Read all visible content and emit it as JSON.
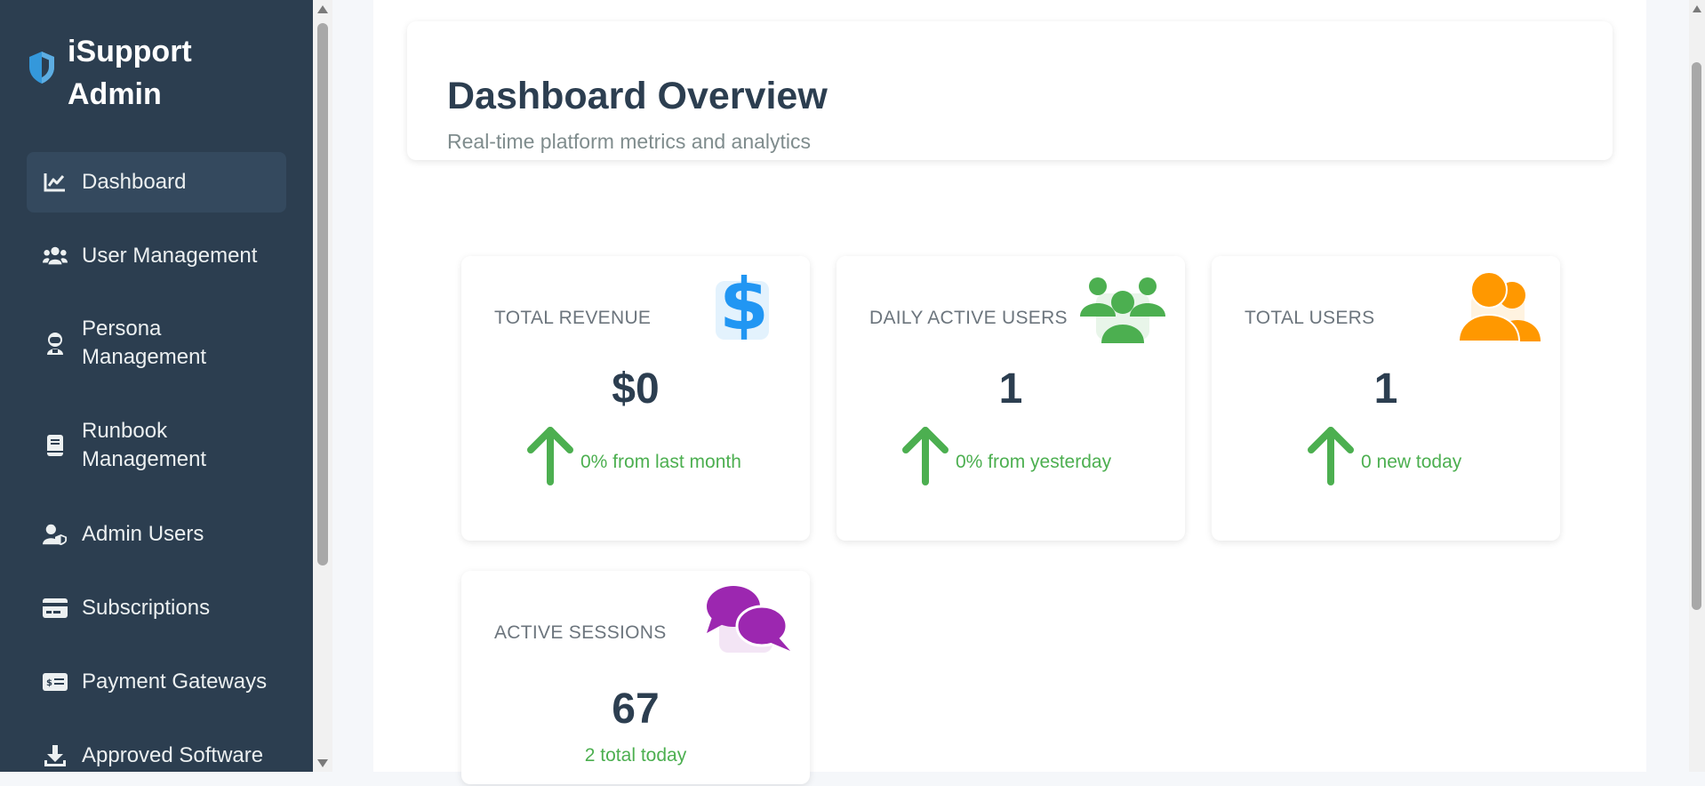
{
  "brand": {
    "line1": "iSupport",
    "line2": "Admin"
  },
  "sidebar": {
    "items": [
      {
        "line1": "Dashboard",
        "line2": "",
        "icon": "chart-line-icon",
        "active": true
      },
      {
        "line1": "User Management",
        "line2": "",
        "icon": "users-icon",
        "active": false
      },
      {
        "line1": "Persona",
        "line2": "Management",
        "icon": "user-astronaut-icon",
        "active": false
      },
      {
        "line1": "Runbook",
        "line2": "Management",
        "icon": "book-icon",
        "active": false
      },
      {
        "line1": "Admin Users",
        "line2": "",
        "icon": "user-shield-icon",
        "active": false
      },
      {
        "line1": "Subscriptions",
        "line2": "",
        "icon": "credit-card-icon",
        "active": false
      },
      {
        "line1": "Payment Gateways",
        "line2": "",
        "icon": "money-check-icon",
        "active": false
      },
      {
        "line1": "Approved Software",
        "line2": "",
        "icon": "download-icon",
        "active": false
      }
    ]
  },
  "header": {
    "title": "Dashboard Overview",
    "subtitle": "Real-time platform metrics and analytics"
  },
  "stats": [
    {
      "label": "TOTAL REVENUE",
      "value": "$0",
      "change": "0% from last month",
      "icon": "dollar-icon",
      "color": "#2196f3"
    },
    {
      "label": "DAILY ACTIVE USERS",
      "value": "1",
      "change": "0% from yesterday",
      "icon": "users-group-icon",
      "color": "#4caf50"
    },
    {
      "label": "TOTAL USERS",
      "value": "1",
      "change": "0 new today",
      "icon": "user-friends-icon",
      "color": "#ff9800"
    },
    {
      "label": "ACTIVE SESSIONS",
      "value": "67",
      "change": "2 total today",
      "icon": "comments-icon",
      "color": "#9c27b0"
    }
  ],
  "colors": {
    "sidebar_bg": "#2c3e50",
    "sidebar_active": "#34495e",
    "positive": "#4caf50",
    "brand_accent": "#3498db"
  }
}
